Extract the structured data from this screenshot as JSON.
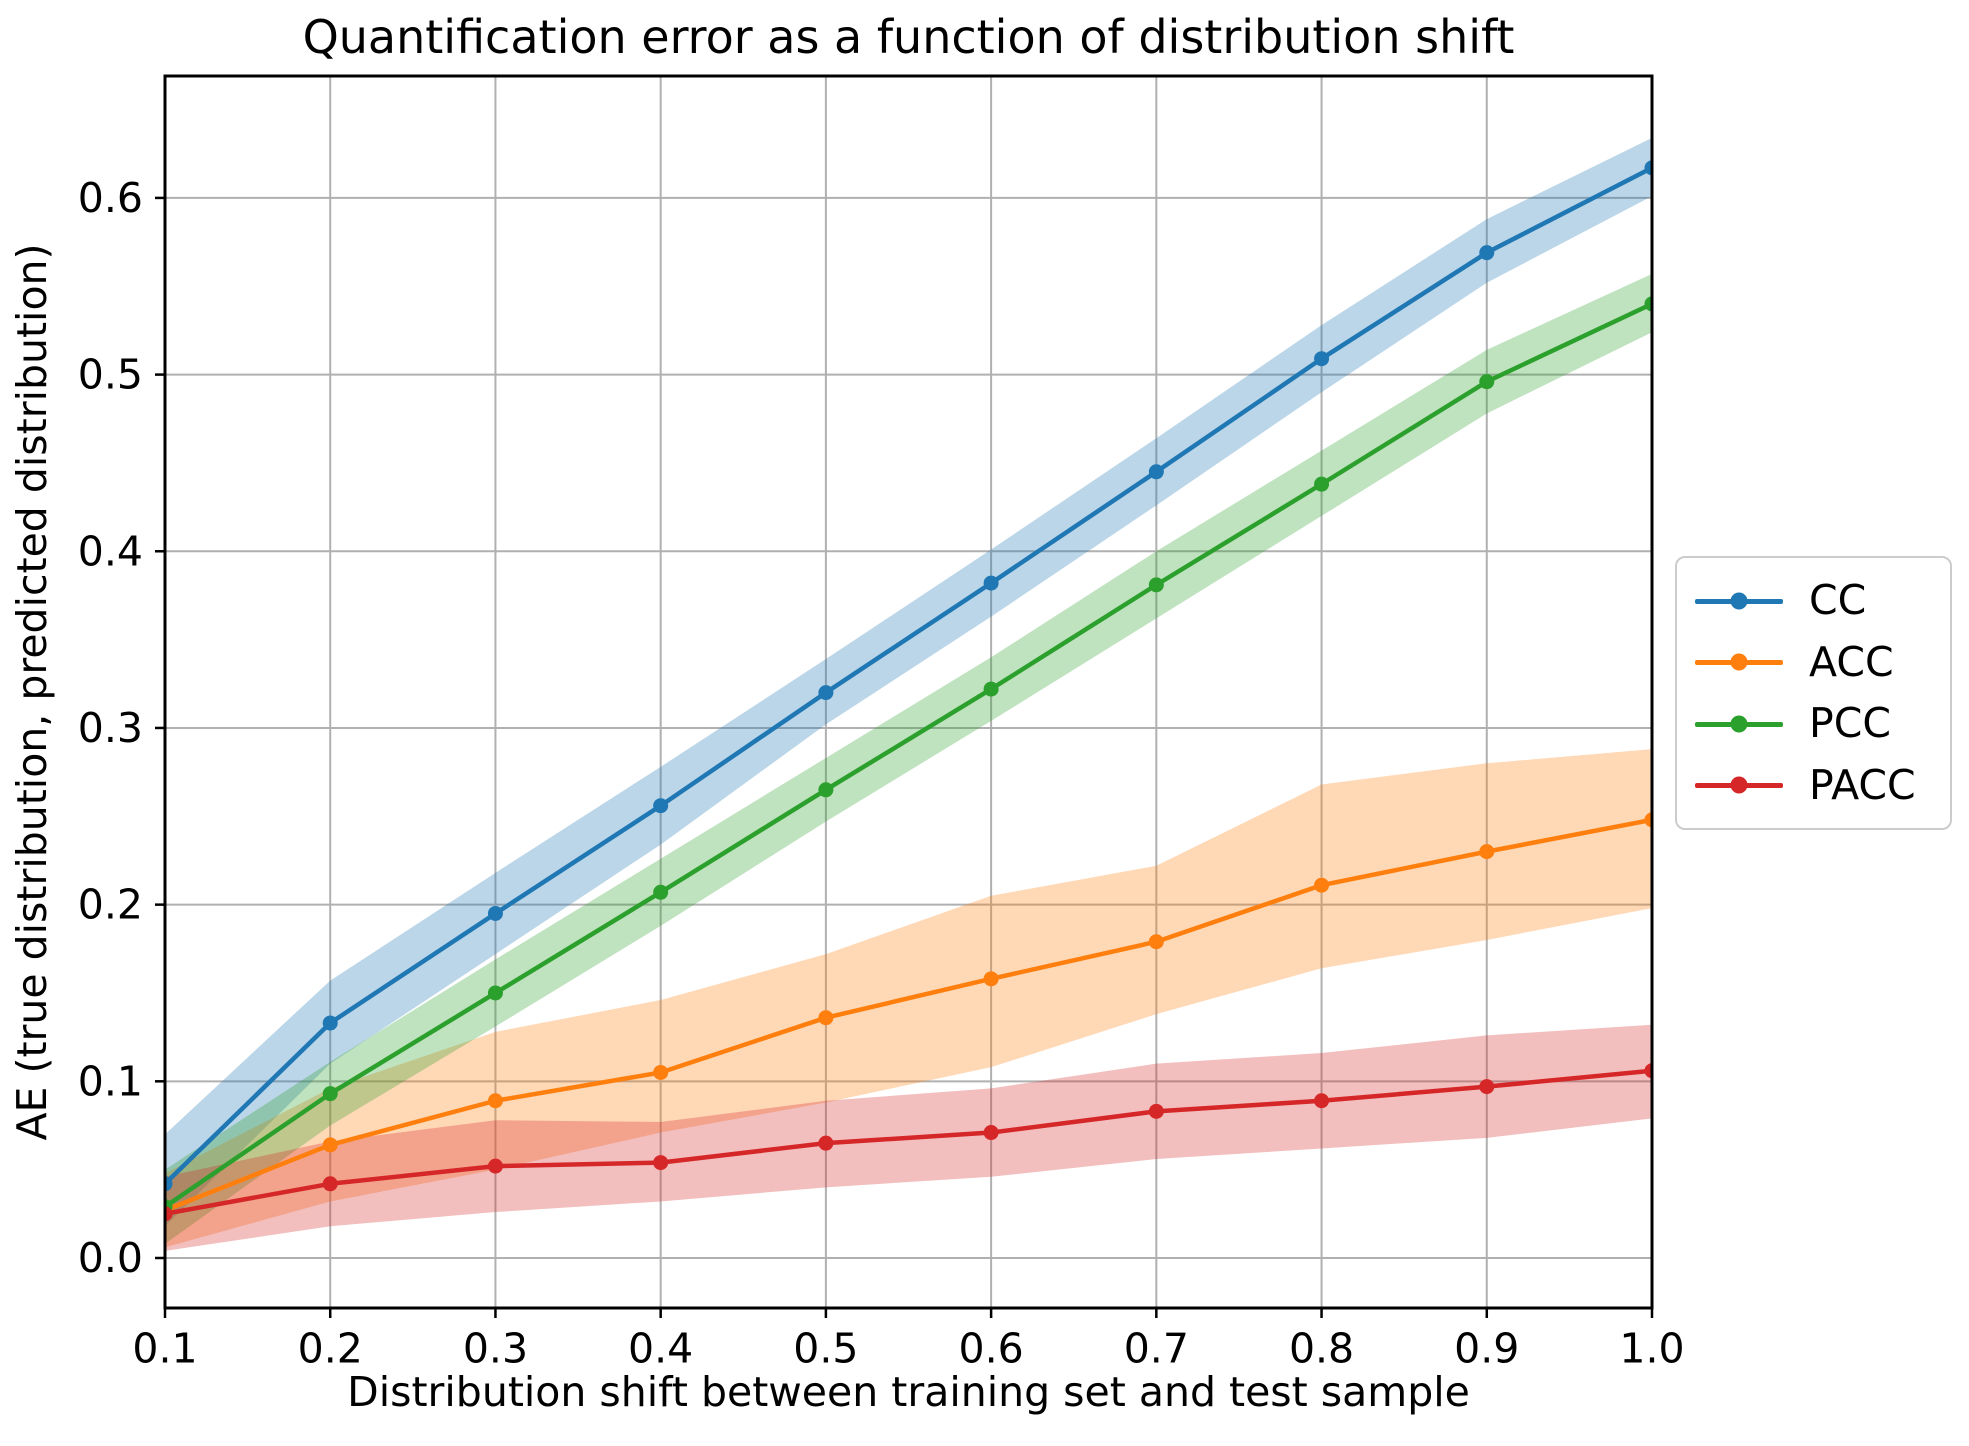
{
  "title": "Quantification error as a function of distribution shift",
  "axes": {
    "x_label": "Distribution shift between training set and test sample",
    "y_label": "AE (true distribution, predicted distribution)",
    "x_ticks": [
      "0.1",
      "0.2",
      "0.3",
      "0.4",
      "0.5",
      "0.6",
      "0.7",
      "0.8",
      "0.9",
      "1.0"
    ],
    "y_ticks": [
      "0.0",
      "0.1",
      "0.2",
      "0.3",
      "0.4",
      "0.5",
      "0.6"
    ]
  },
  "legend": {
    "entries": [
      {
        "label": "CC",
        "color": "#1f77b4"
      },
      {
        "label": "ACC",
        "color": "#ff7f0e"
      },
      {
        "label": "PCC",
        "color": "#2ca02c"
      },
      {
        "label": "PACC",
        "color": "#d62728"
      }
    ]
  },
  "colors": {
    "grid": "#b0b0b0",
    "spine": "#000000",
    "background": "#ffffff",
    "legend_border": "#cccccc"
  },
  "chart_data": {
    "type": "line",
    "title": "Quantification error as a function of distribution shift",
    "xlabel": "Distribution shift between training set and test sample",
    "ylabel": "AE (true distribution, predicted distribution)",
    "x": [
      0.1,
      0.2,
      0.3,
      0.4,
      0.5,
      0.6,
      0.7,
      0.8,
      0.9,
      1.0
    ],
    "series": [
      {
        "name": "CC",
        "color": "#1f77b4",
        "values": [
          0.042,
          0.133,
          0.195,
          0.256,
          0.32,
          0.382,
          0.445,
          0.509,
          0.569,
          0.617
        ],
        "band_lo": [
          0.018,
          0.11,
          0.172,
          0.234,
          0.302,
          0.363,
          0.426,
          0.49,
          0.552,
          0.601
        ],
        "band_hi": [
          0.07,
          0.157,
          0.218,
          0.278,
          0.339,
          0.401,
          0.464,
          0.528,
          0.588,
          0.634
        ]
      },
      {
        "name": "ACC",
        "color": "#ff7f0e",
        "values": [
          0.027,
          0.064,
          0.089,
          0.105,
          0.136,
          0.158,
          0.179,
          0.211,
          0.23,
          0.248
        ],
        "band_lo": [
          0.006,
          0.032,
          0.05,
          0.071,
          0.088,
          0.108,
          0.138,
          0.164,
          0.18,
          0.198
        ],
        "band_hi": [
          0.048,
          0.096,
          0.128,
          0.146,
          0.172,
          0.205,
          0.222,
          0.268,
          0.28,
          0.288
        ]
      },
      {
        "name": "PCC",
        "color": "#2ca02c",
        "values": [
          0.029,
          0.093,
          0.15,
          0.207,
          0.265,
          0.322,
          0.381,
          0.438,
          0.496,
          0.54
        ],
        "band_lo": [
          0.008,
          0.075,
          0.131,
          0.188,
          0.247,
          0.304,
          0.362,
          0.42,
          0.478,
          0.524
        ],
        "band_hi": [
          0.05,
          0.111,
          0.169,
          0.226,
          0.283,
          0.34,
          0.4,
          0.457,
          0.514,
          0.557
        ]
      },
      {
        "name": "PACC",
        "color": "#d62728",
        "values": [
          0.025,
          0.042,
          0.052,
          0.054,
          0.065,
          0.071,
          0.083,
          0.089,
          0.097,
          0.106
        ],
        "band_lo": [
          0.004,
          0.018,
          0.026,
          0.032,
          0.04,
          0.046,
          0.056,
          0.062,
          0.068,
          0.079
        ],
        "band_hi": [
          0.046,
          0.066,
          0.078,
          0.077,
          0.089,
          0.096,
          0.11,
          0.116,
          0.126,
          0.132
        ]
      }
    ],
    "xlim": [
      0.1,
      1.0
    ],
    "ylim": [
      -0.0283,
      0.669
    ],
    "grid": true,
    "band_alpha": 0.3,
    "legend_position": "outside-right"
  }
}
